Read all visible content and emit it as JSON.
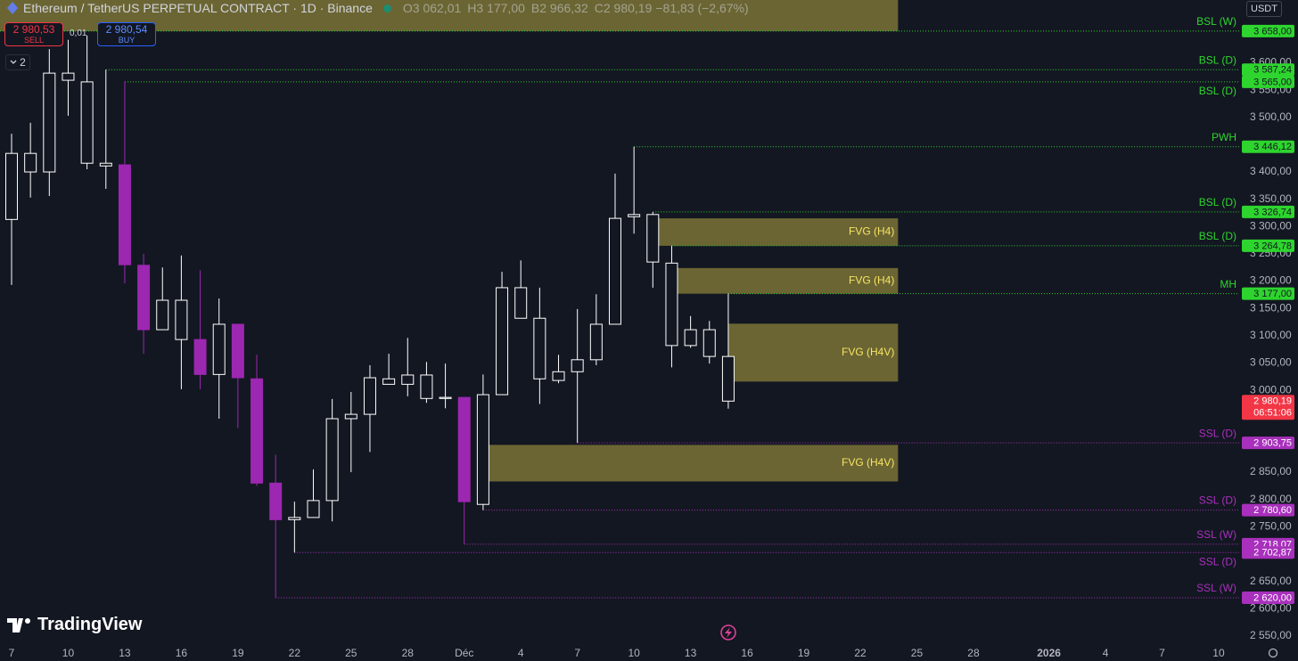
{
  "header": {
    "symbol": "Ethereum / TetherUS PERPETUAL CONTRACT · 1D · Binance",
    "ohlc": [
      {
        "key": "O",
        "value": "3 062,01"
      },
      {
        "key": "H",
        "value": "3 177,00"
      },
      {
        "key": "B",
        "value": "2 966,32"
      },
      {
        "key": "C",
        "value": "2 980,19"
      }
    ],
    "change": "−81,83 (−2,67%)"
  },
  "trade": {
    "sell_price": "2 980,53",
    "sell": "SELL",
    "spread": "0,01",
    "buy_price": "2 980,54",
    "buy": "BUY"
  },
  "indicators_count": "2",
  "currency": "USDT",
  "brand": "TradingView",
  "chart_data": {
    "type": "candlestick",
    "categories": [
      "7",
      null,
      null,
      "10",
      null,
      null,
      "13",
      null,
      null,
      "16",
      null,
      null,
      "19",
      null,
      null,
      "22",
      null,
      null,
      "25",
      null,
      null,
      "28",
      null,
      null,
      "Déc",
      null,
      null,
      "4",
      null,
      null,
      "7",
      null,
      null,
      "10",
      null,
      null,
      "13",
      null,
      null,
      "16",
      null,
      null,
      "19",
      null,
      null,
      "22",
      null,
      null,
      "25",
      null,
      null,
      "28",
      null,
      null,
      null,
      "2026",
      null,
      null,
      "4",
      null,
      null,
      "7",
      null,
      null,
      "10",
      null
    ],
    "open": [
      3313,
      3434,
      3400,
      3581,
      3565,
      3416,
      3413,
      3229,
      3111,
      3165,
      3093,
      3029,
      3121,
      3021,
      2830,
      2763,
      2767,
      2798,
      2948,
      2956,
      3021,
      3011,
      3028,
      2985,
      2987,
      2791,
      2992,
      3188,
      3132,
      3018,
      3034,
      3056,
      3121,
      3318,
      3322,
      3233,
      3082,
      3111,
      3062.01,
      null,
      null,
      null,
      null,
      null,
      null,
      null,
      null,
      null,
      null,
      null,
      null,
      null,
      null,
      null,
      null,
      null,
      null,
      null,
      null,
      null,
      null,
      null,
      null,
      null,
      null,
      null
    ],
    "high": [
      3470,
      3490,
      3625,
      3642,
      3650,
      3587.24,
      3565,
      3250,
      3225,
      3247,
      3220,
      3168,
      3121,
      3065,
      2882,
      2796,
      2855,
      2984,
      2997,
      3046,
      3067,
      3096,
      3052,
      3049,
      2987,
      3029,
      3217,
      3238,
      3188,
      3065,
      3149,
      3176,
      3397,
      3446.12,
      3326.74,
      3264.78,
      3136,
      3127,
      3177,
      null,
      null,
      null,
      null,
      null,
      null,
      null,
      null,
      null,
      null,
      null,
      null,
      null,
      null,
      null,
      null,
      null,
      null,
      null,
      null,
      null,
      null,
      null,
      null,
      null,
      null,
      null
    ],
    "low": [
      3193,
      3353,
      3356,
      3503,
      3405,
      3369,
      3196,
      3067,
      3111,
      3002,
      3002,
      2948,
      2931,
      2825,
      2620,
      2702.87,
      2767,
      2760,
      2850,
      2887,
      3011,
      2989,
      2977,
      2967,
      2718.07,
      2780.6,
      2992,
      3132,
      2975,
      3013,
      2903.75,
      3046,
      3121,
      3287,
      3188,
      3042,
      3078,
      3049,
      2966.32,
      null,
      null,
      null,
      null,
      null,
      null,
      null,
      null,
      null,
      null,
      null,
      null,
      null,
      null,
      null,
      null,
      null,
      null,
      null,
      null,
      null,
      null,
      null,
      null,
      null,
      null,
      null
    ],
    "close": [
      3434,
      3400,
      3581,
      3568,
      3416,
      3411,
      3230,
      3111,
      3165,
      3093,
      3029,
      3121,
      3023,
      2830,
      2763,
      2767,
      2798,
      2948,
      2956,
      3023,
      3011,
      3028,
      2985,
      2987,
      2796,
      2992,
      3188,
      3132,
      3021,
      3034,
      3056,
      3121,
      3315,
      3322,
      3235,
      3082,
      3111,
      3062,
      2980.19,
      null,
      null,
      null,
      null,
      null,
      null,
      null,
      null,
      null,
      null,
      null,
      null,
      null,
      null,
      null,
      null,
      null,
      null,
      null,
      null,
      null,
      null,
      null,
      null,
      null,
      null,
      null
    ],
    "colors": [
      "#ffffff",
      "#ffffff",
      "#ffffff",
      "#ffffff",
      "#ffffff",
      "#ffffff",
      "#9c27b0",
      "#9c27b0",
      "#ffffff",
      "#ffffff",
      "#9c27b0",
      "#ffffff",
      "#9c27b0",
      "#9c27b0",
      "#9c27b0",
      "#ffffff",
      "#ffffff",
      "#ffffff",
      "#ffffff",
      "#ffffff",
      "#ffffff",
      "#ffffff",
      "#ffffff",
      "#ffffff",
      "#9c27b0",
      "#ffffff",
      "#ffffff",
      "#ffffff",
      "#ffffff",
      "#ffffff",
      "#ffffff",
      "#ffffff",
      "#ffffff",
      "#ffffff",
      "#ffffff",
      "#ffffff",
      "#ffffff",
      "#ffffff",
      "#ffffff",
      null,
      null,
      null,
      null,
      null,
      null,
      null,
      null,
      null,
      null,
      null,
      null,
      null,
      null,
      null,
      null,
      null,
      null,
      null,
      null,
      null,
      null,
      null,
      null,
      null,
      null,
      null
    ],
    "hollow_color": "#ffffff",
    "ylim": [
      2540,
      3715
    ],
    "yticks": [
      {
        "value": 3600,
        "label": "3 600,00"
      },
      {
        "value": 3550,
        "label": "3 550,00"
      },
      {
        "value": 3500,
        "label": "3 500,00"
      },
      {
        "value": 3400,
        "label": "3 400,00"
      },
      {
        "value": 3350,
        "label": "3 350,00"
      },
      {
        "value": 3300,
        "label": "3 300,00"
      },
      {
        "value": 3250,
        "label": "3 250,00"
      },
      {
        "value": 3200,
        "label": "3 200,00"
      },
      {
        "value": 3150,
        "label": "3 150,00"
      },
      {
        "value": 3100,
        "label": "3 100,00"
      },
      {
        "value": 3050,
        "label": "3 050,00"
      },
      {
        "value": 3000,
        "label": "3 000,00"
      },
      {
        "value": 2850,
        "label": "2 850,00"
      },
      {
        "value": 2800,
        "label": "2 800,00"
      },
      {
        "value": 2750,
        "label": "2 750,00"
      },
      {
        "value": 2650,
        "label": "2 650,00"
      },
      {
        "value": 2600,
        "label": "2 600,00"
      },
      {
        "value": 2550,
        "label": "2 550,00"
      }
    ],
    "levels": [
      {
        "name": "BSL (W)",
        "value": 3658,
        "label": "3 658,00",
        "color": "#2ed52e"
      },
      {
        "name": "BSL (D)",
        "value": 3587.24,
        "label": "3 587,24",
        "color": "#2ed52e"
      },
      {
        "name": "BSL (D)",
        "value": 3565,
        "label": "3 565,00",
        "color": "#2ed52e",
        "label_side": "below"
      },
      {
        "name": "PWH",
        "value": 3446.12,
        "label": "3 446,12",
        "color": "#2ed52e"
      },
      {
        "name": "BSL (D)",
        "value": 3326.74,
        "label": "3 326,74",
        "color": "#2ed52e"
      },
      {
        "name": "BSL (D)",
        "value": 3264.78,
        "label": "3 264,78",
        "color": "#2ed52e"
      },
      {
        "name": "MH",
        "value": 3177,
        "label": "3 177,00",
        "color": "#2ed52e"
      },
      {
        "name": "SSL (D)",
        "value": 2903.75,
        "label": "2 903,75",
        "color": "#a830bc"
      },
      {
        "name": "SSL (D)",
        "value": 2780.6,
        "label": "2 780,60",
        "color": "#a830bc"
      },
      {
        "name": "SSL (W)",
        "value": 2718.07,
        "label": "2 718,07",
        "color": "#a830bc"
      },
      {
        "name": "SSL (D)",
        "value": 2702.87,
        "label": "2 702,87",
        "color": "#a830bc",
        "label_side": "below"
      },
      {
        "name": "SSL (W)",
        "value": 2620,
        "label": "2 620,00",
        "color": "#a830bc"
      }
    ],
    "zones": [
      {
        "low": 3658,
        "high": 3720,
        "to": 47
      },
      {
        "label": "FVG (H4)",
        "low": 3264.78,
        "high": 3315,
        "from": 34,
        "to": 47
      },
      {
        "label": "FVG (H4)",
        "low": 3177,
        "high": 3224,
        "from": 35,
        "to": 47
      },
      {
        "label": "FVG (H4V)",
        "low": 3016,
        "high": 3122,
        "from": 38,
        "to": 47
      },
      {
        "label": "FVG (H4V)",
        "low": 2833,
        "high": 2900,
        "from": 25,
        "to": 47
      }
    ],
    "zone_color": "#b5a642",
    "last_price": {
      "label": "2 980,19",
      "countdown": "06:51:06",
      "color": "#f23645"
    }
  }
}
